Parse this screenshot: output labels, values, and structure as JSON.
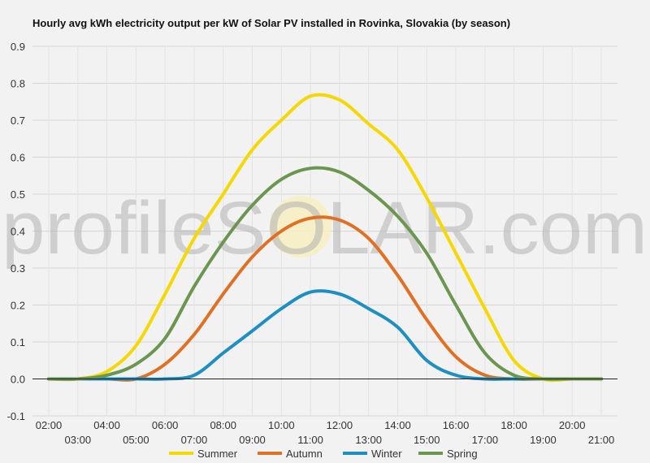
{
  "chart_data": {
    "type": "line",
    "title": "Hourly avg kWh electricity output per kW of Solar PV installed in Rovinka, Slovakia (by season)",
    "watermark": "profileSOLAR.com",
    "xlabel": "",
    "ylabel": "",
    "x": [
      "02:00",
      "03:00",
      "04:00",
      "05:00",
      "06:00",
      "07:00",
      "08:00",
      "09:00",
      "10:00",
      "11:00",
      "12:00",
      "13:00",
      "14:00",
      "15:00",
      "16:00",
      "17:00",
      "18:00",
      "19:00",
      "20:00",
      "21:00"
    ],
    "x_tick_labels": [
      "02:00",
      "03:00",
      "04:00",
      "05:00",
      "06:00",
      "07:00",
      "08:00",
      "09:00",
      "10:00",
      "11:00",
      "12:00",
      "13:00",
      "14:00",
      "15:00",
      "16:00",
      "17:00",
      "18:00",
      "19:00",
      "20:00",
      "21:00"
    ],
    "ylim": [
      -0.1,
      0.9
    ],
    "y_ticks": [
      "-0.1",
      "0.0",
      "0.1",
      "0.2",
      "0.3",
      "0.4",
      "0.5",
      "0.6",
      "0.7",
      "0.8",
      "0.9"
    ],
    "grid": true,
    "legend": "bottom",
    "series": [
      {
        "name": "Summer",
        "color": "#f5d800",
        "values": [
          0.0,
          0.0,
          0.02,
          0.09,
          0.23,
          0.38,
          0.5,
          0.62,
          0.7,
          0.765,
          0.755,
          0.69,
          0.62,
          0.49,
          0.34,
          0.19,
          0.05,
          0.0,
          0.0,
          0.0
        ]
      },
      {
        "name": "Autumn",
        "color": "#e07024",
        "values": [
          0.0,
          0.0,
          0.0,
          0.0,
          0.04,
          0.12,
          0.23,
          0.33,
          0.4,
          0.435,
          0.43,
          0.38,
          0.28,
          0.16,
          0.06,
          0.01,
          0.0,
          0.0,
          0.0,
          0.0
        ]
      },
      {
        "name": "Winter",
        "color": "#1e8fc0",
        "values": [
          0.0,
          0.0,
          0.0,
          0.0,
          0.0,
          0.01,
          0.07,
          0.13,
          0.19,
          0.235,
          0.23,
          0.19,
          0.14,
          0.05,
          0.01,
          0.0,
          0.0,
          0.0,
          0.0,
          0.0
        ]
      },
      {
        "name": "Spring",
        "color": "#6b9650",
        "values": [
          0.0,
          0.0,
          0.01,
          0.04,
          0.11,
          0.25,
          0.37,
          0.47,
          0.54,
          0.57,
          0.56,
          0.51,
          0.44,
          0.34,
          0.2,
          0.07,
          0.01,
          0.0,
          0.0,
          0.0
        ]
      }
    ]
  }
}
